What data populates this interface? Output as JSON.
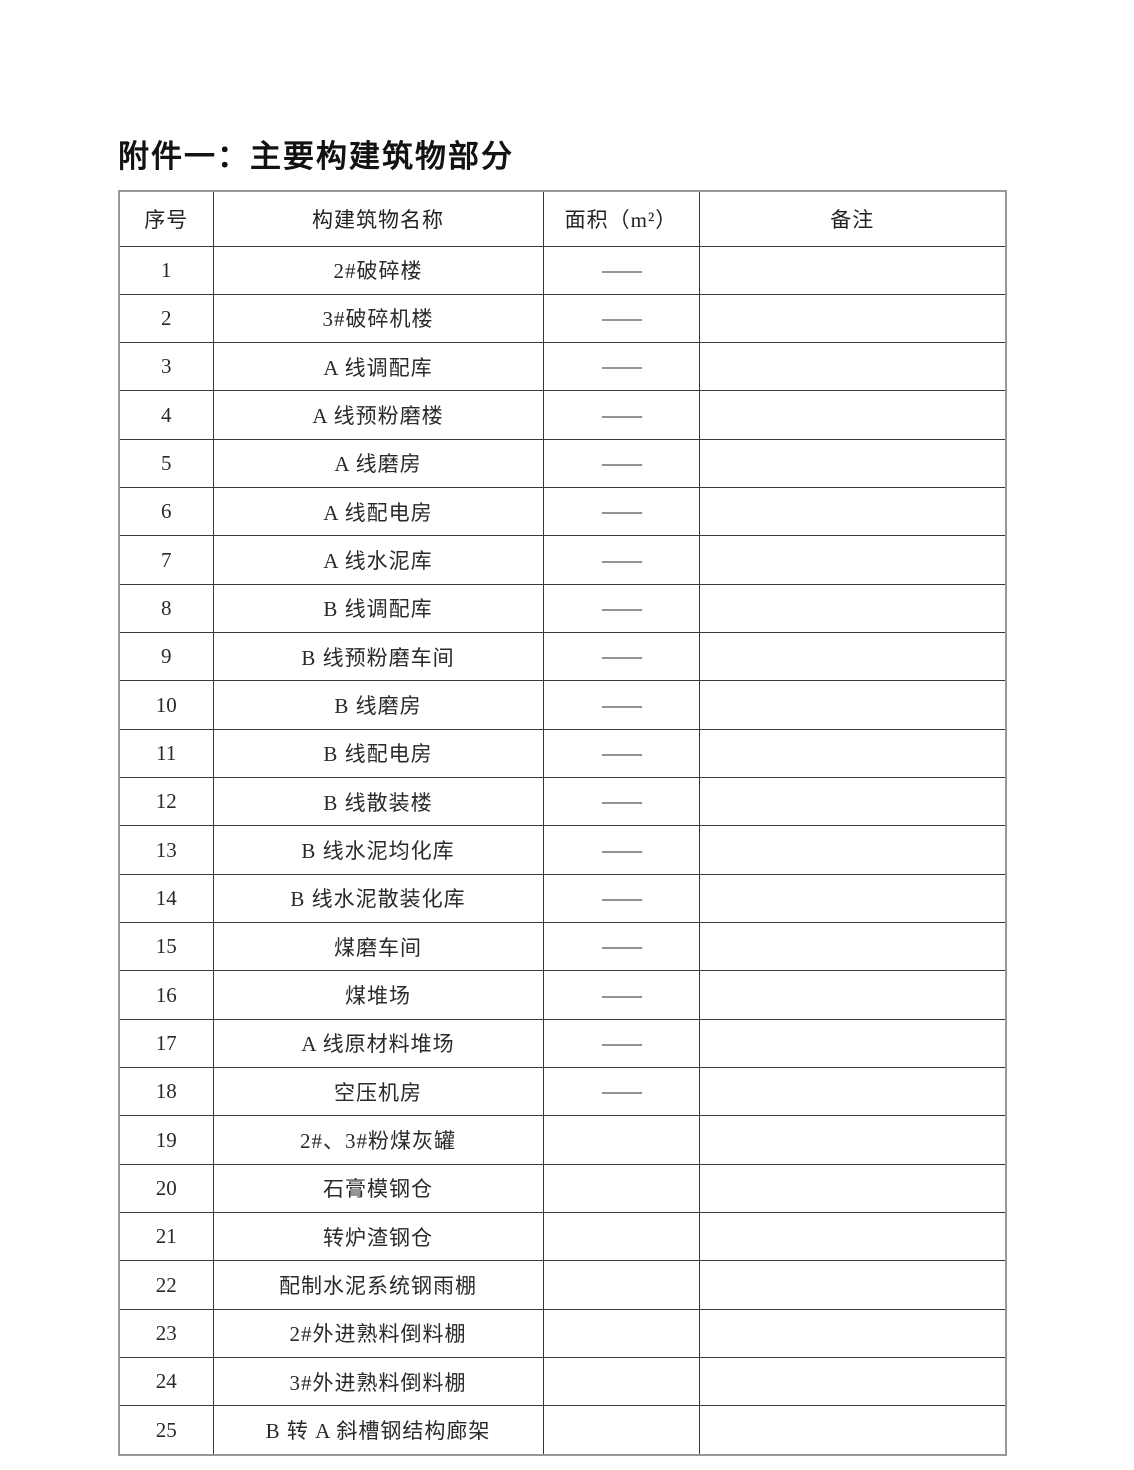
{
  "page": {
    "title": "附件一：主要构建筑物部分"
  },
  "table": {
    "headers": [
      "序号",
      "构建筑物名称",
      "面积（m²）",
      "备注"
    ],
    "rows": [
      {
        "no": "1",
        "name": "2#破碎楼",
        "area": "——",
        "note": ""
      },
      {
        "no": "2",
        "name": "3#破碎机楼",
        "area": "——",
        "note": ""
      },
      {
        "no": "3",
        "name": "A 线调配库",
        "area": "——",
        "note": ""
      },
      {
        "no": "4",
        "name": "A 线预粉磨楼",
        "area": "——",
        "note": ""
      },
      {
        "no": "5",
        "name": "A 线磨房",
        "area": "——",
        "note": ""
      },
      {
        "no": "6",
        "name": "A 线配电房",
        "area": "——",
        "note": ""
      },
      {
        "no": "7",
        "name": "A 线水泥库",
        "area": "——",
        "note": ""
      },
      {
        "no": "8",
        "name": "B 线调配库",
        "area": "——",
        "note": ""
      },
      {
        "no": "9",
        "name": "B 线预粉磨车间",
        "area": "——",
        "note": ""
      },
      {
        "no": "10",
        "name": "B 线磨房",
        "area": "——",
        "note": ""
      },
      {
        "no": "11",
        "name": "B 线配电房",
        "area": "——",
        "note": ""
      },
      {
        "no": "12",
        "name": "B 线散装楼",
        "area": "——",
        "note": ""
      },
      {
        "no": "13",
        "name": "B 线水泥均化库",
        "area": "——",
        "note": ""
      },
      {
        "no": "14",
        "name": "B 线水泥散装化库",
        "area": "——",
        "note": ""
      },
      {
        "no": "15",
        "name": "煤磨车间",
        "area": "——",
        "note": ""
      },
      {
        "no": "16",
        "name": "煤堆场",
        "area": "——",
        "note": ""
      },
      {
        "no": "17",
        "name": "A 线原材料堆场",
        "area": "——",
        "note": ""
      },
      {
        "no": "18",
        "name": "空压机房",
        "area": "——",
        "note": ""
      },
      {
        "no": "19",
        "name": "2#、3#粉煤灰罐",
        "area": "",
        "note": ""
      },
      {
        "no": "20",
        "name": "石膏模钢仓",
        "area": "",
        "note": ""
      },
      {
        "no": "21",
        "name": "转炉渣钢仓",
        "area": "",
        "note": ""
      },
      {
        "no": "22",
        "name": "配制水泥系统钢雨棚",
        "area": "",
        "note": ""
      },
      {
        "no": "23",
        "name": "2#外进熟料倒料棚",
        "area": "",
        "note": ""
      },
      {
        "no": "24",
        "name": "3#外进熟料倒料棚",
        "area": "",
        "note": ""
      },
      {
        "no": "25",
        "name": "B 转 A 斜槽钢结构廊架",
        "area": "",
        "note": ""
      }
    ]
  }
}
